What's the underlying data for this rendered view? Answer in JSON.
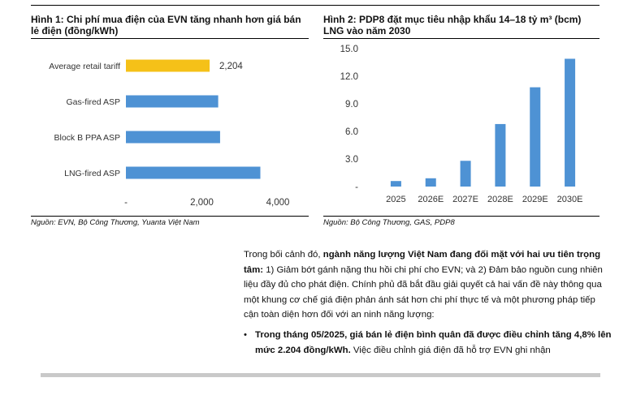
{
  "figure1": {
    "title_line1": "Hình 1: Chi phí mua điện của EVN tăng nhanh hơn giá bán",
    "title_line2": "lẻ điện (đồng/kWh)",
    "source": "Nguồn: EVN, Bộ Công Thương, Yuanta Việt Nam"
  },
  "figure2": {
    "title_line1": "Hình 2: PDP8 đặt mục tiêu nhập khẩu 14–18 tỷ m³ (bcm)",
    "title_line2": "LNG vào năm 2030",
    "source": "Nguồn: Bộ Công Thương, GAS, PDP8"
  },
  "chart_data": [
    {
      "type": "bar",
      "orientation": "horizontal",
      "categories": [
        "Average retail tariff",
        "Gas-fired ASP",
        "Block B PPA ASP",
        "LNG-fired ASP"
      ],
      "values": [
        2204,
        2430,
        2480,
        3540
      ],
      "data_labels": [
        "2,204",
        "",
        "",
        ""
      ],
      "colors": [
        "#f5c118",
        "#4e92d4",
        "#4e92d4",
        "#4e92d4"
      ],
      "x_ticks": [
        "-",
        "2,000",
        "4,000"
      ],
      "xlim": [
        0,
        4000
      ],
      "grid": false
    },
    {
      "type": "bar",
      "categories": [
        "2025",
        "2026E",
        "2027E",
        "2028E",
        "2029E",
        "2030E"
      ],
      "values": [
        0.6,
        0.9,
        2.8,
        6.8,
        10.8,
        13.9
      ],
      "y_ticks": [
        "-",
        "3.0",
        "6.0",
        "9.0",
        "12.0",
        "15.0"
      ],
      "ylim": [
        0,
        15
      ],
      "color": "#4e92d4",
      "grid": false
    }
  ],
  "body": {
    "para_intro": "Trong bối cảnh đó, ",
    "para_bold": "ngành năng lượng Việt Nam đang đối mặt với hai ưu tiên trọng tâm:",
    "para_rest": " 1) Giảm bớt gánh nặng thu hồi chi phí cho EVN; và 2) Đảm bảo nguồn cung nhiên liệu đầy đủ cho phát điện. Chính phủ đã bắt đầu giải quyết cả hai vấn đề này thông qua một khung cơ chế giá điện phản ánh sát hơn chi phí thực tế và một phương pháp tiếp cận toàn diện hơn đối với an ninh năng lượng:",
    "bullet_symbol": "•",
    "bullet_bold": "Trong tháng 05/2025, giá bán lẻ điện bình quân đã được điều chỉnh tăng 4,8% lên mức 2.204 đồng/kWh.",
    "bullet_rest": " Việc điều chỉnh giá điện đã hỗ trợ EVN ghi nhận"
  }
}
